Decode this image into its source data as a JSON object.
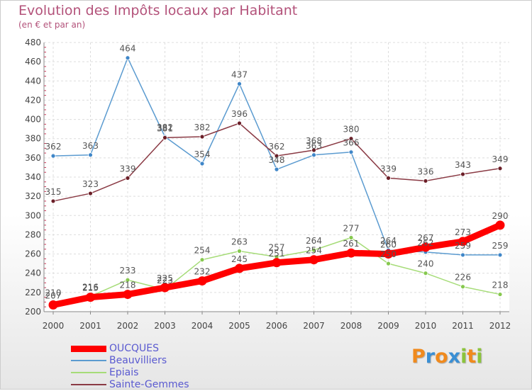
{
  "title": "Evolution des Impôts locaux par Habitant",
  "subtitle": "(en € et par an)",
  "brand": {
    "letters": [
      "P",
      "r",
      "o",
      "x",
      "i",
      "t",
      "i"
    ],
    "colors": [
      "#f08a1d",
      "#3a8fd4",
      "#f08a1d",
      "#3a8fd4",
      "#8cc43c",
      "#f08a1d",
      "#8cc43c"
    ]
  },
  "chart_data": {
    "type": "line",
    "title": "Evolution des Impôts locaux par Habitant",
    "subtitle": "(en € et par an)",
    "xlabel": "",
    "ylabel": "",
    "x": [
      "2000",
      "2001",
      "2002",
      "2003",
      "2004",
      "2005",
      "2006",
      "2007",
      "2008",
      "2009",
      "2010",
      "2011",
      "2012"
    ],
    "ylim": [
      200,
      480
    ],
    "yticks": [
      200,
      220,
      240,
      260,
      280,
      300,
      320,
      340,
      360,
      380,
      400,
      420,
      440,
      460,
      480
    ],
    "grid": true,
    "legend": "bottom-left",
    "series": [
      {
        "name": "Beauvilliers",
        "color": "#5b9bd0",
        "marker": "#3f86c8",
        "values": [
          362,
          363,
          464,
          382,
          354,
          437,
          348,
          363,
          366,
          264,
          262,
          259,
          259
        ]
      },
      {
        "name": "Sainte-Gemmes",
        "color": "#8a3a44",
        "marker": "#6b1f28",
        "values": [
          315,
          323,
          339,
          381,
          382,
          396,
          362,
          368,
          380,
          339,
          336,
          343,
          349
        ]
      },
      {
        "name": "Epiais",
        "color": "#a6dc78",
        "marker": "#86c84e",
        "values": [
          210,
          216,
          233,
          223,
          254,
          263,
          257,
          264,
          277,
          250,
          240,
          226,
          218
        ]
      },
      {
        "name": "OUCQUES",
        "color": "#ff0000",
        "marker": "#ff0000",
        "thick": true,
        "values": [
          207,
          215,
          218,
          225,
          232,
          245,
          251,
          254,
          261,
          260,
          267,
          273,
          290
        ]
      }
    ],
    "legend_order": [
      "OUCQUES",
      "Beauvilliers",
      "Epiais",
      "Sainte-Gemmes"
    ]
  }
}
